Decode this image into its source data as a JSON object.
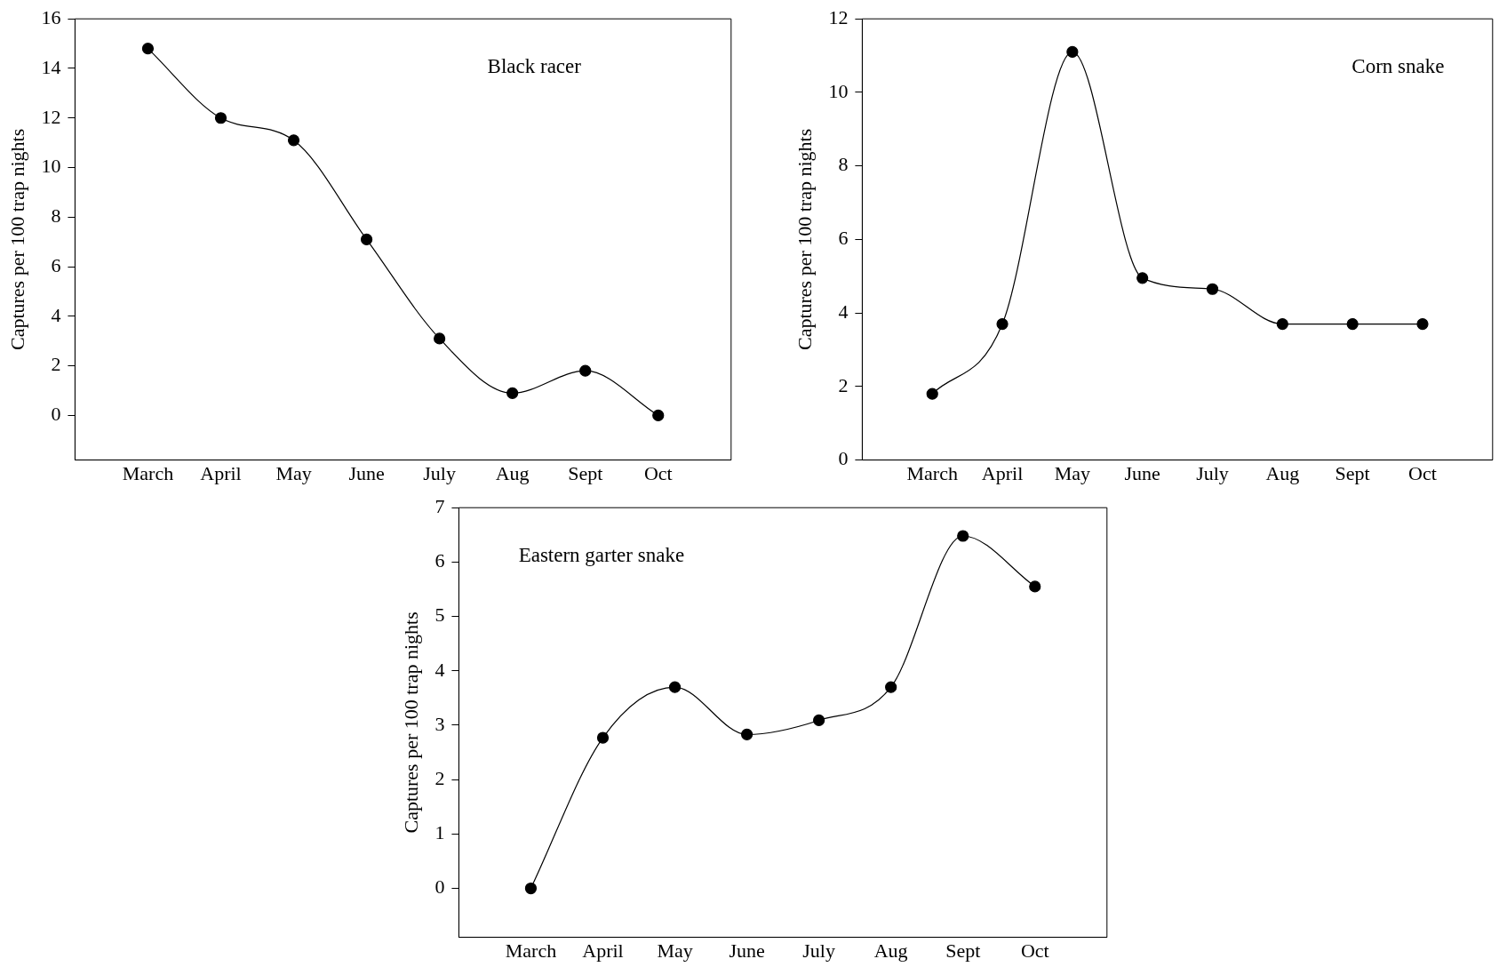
{
  "chart_data": [
    {
      "type": "line",
      "title": "Black racer",
      "ylabel": "Captures per 100 trap nights",
      "categories": [
        "March",
        "April",
        "May",
        "June",
        "July",
        "Aug",
        "Sept",
        "Oct"
      ],
      "values": [
        14.8,
        12.0,
        11.1,
        7.1,
        3.1,
        0.9,
        1.8,
        0
      ],
      "color": "#000000",
      "ylim": [
        -1.8,
        16
      ],
      "yticks": [
        0,
        2,
        4,
        6,
        8,
        10,
        12,
        14,
        16
      ],
      "marker": "circle",
      "grid": false,
      "legend": false
    },
    {
      "type": "line",
      "title": "Corn snake",
      "ylabel": "Captures per 100 trap nights",
      "categories": [
        "March",
        "April",
        "May",
        "June",
        "July",
        "Aug",
        "Sept",
        "Oct"
      ],
      "values": [
        1.8,
        3.7,
        11.1,
        4.95,
        4.65,
        3.7,
        3.7,
        3.7
      ],
      "color": "#000000",
      "ylim": [
        0,
        12
      ],
      "yticks": [
        0,
        2,
        4,
        6,
        8,
        10,
        12
      ],
      "marker": "circle",
      "grid": false,
      "legend": false
    },
    {
      "type": "line",
      "title": "Eastern garter snake",
      "ylabel": "Captures per 100 trap nights",
      "categories": [
        "March",
        "April",
        "May",
        "June",
        "July",
        "Aug",
        "Sept",
        "Oct"
      ],
      "values": [
        0,
        2.77,
        3.7,
        2.83,
        3.09,
        3.7,
        6.48,
        5.55
      ],
      "color": "#000000",
      "ylim": [
        -0.9,
        7
      ],
      "yticks": [
        0,
        1,
        2,
        3,
        4,
        5,
        6,
        7
      ],
      "marker": "circle",
      "grid": false,
      "legend": false
    }
  ]
}
